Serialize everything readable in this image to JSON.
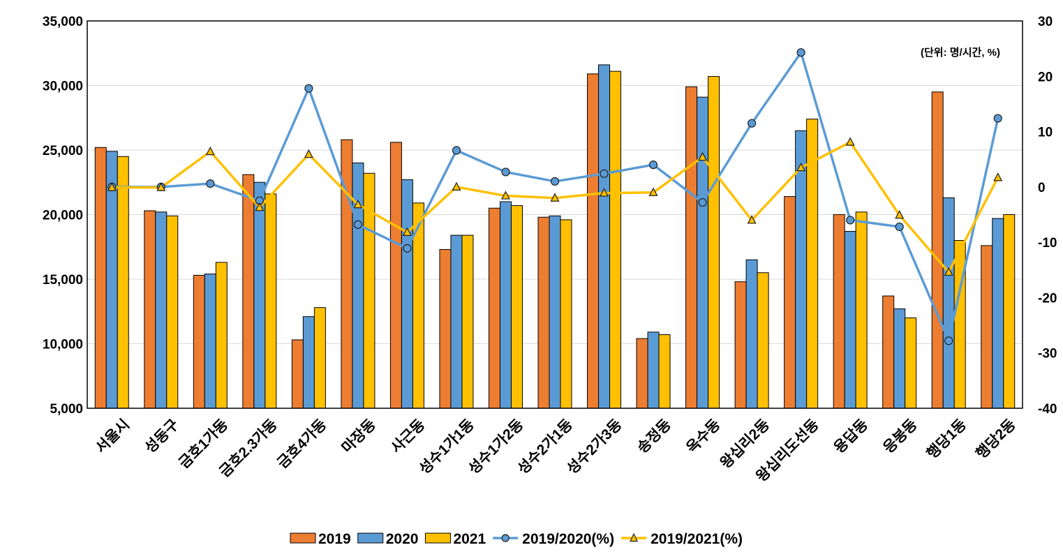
{
  "chart_data": {
    "type": "bar",
    "unit_note": "(단위: 명/시간, %)",
    "categories": [
      "서울시",
      "성동구",
      "금호1가동",
      "금호2.3가동",
      "금호4가동",
      "마장동",
      "사근동",
      "성수1가1동",
      "성수1가2동",
      "성수2가1동",
      "성수2가3동",
      "송정동",
      "옥수동",
      "왕십리2동",
      "왕십리도선동",
      "용답동",
      "응봉동",
      "행당1동",
      "행당2동"
    ],
    "series": [
      {
        "name": "2019",
        "axis": "left",
        "kind": "bar",
        "color": "#ED7D31",
        "values": [
          25200,
          20300,
          15300,
          23100,
          10300,
          25800,
          25600,
          17300,
          20500,
          19800,
          30900,
          10400,
          29900,
          14800,
          21400,
          20000,
          13700,
          29500,
          17600
        ]
      },
      {
        "name": "2020",
        "axis": "left",
        "kind": "bar",
        "color": "#5B9BD5",
        "values": [
          24900,
          20200,
          15400,
          22500,
          12100,
          24000,
          22700,
          18400,
          21000,
          19900,
          31600,
          10900,
          29100,
          16500,
          26500,
          18700,
          12700,
          21300,
          19700
        ]
      },
      {
        "name": "2021",
        "axis": "left",
        "kind": "bar",
        "color": "#FFC000",
        "values": [
          24500,
          19900,
          16300,
          21600,
          12800,
          23200,
          20900,
          18400,
          20700,
          19600,
          31100,
          10700,
          30700,
          15500,
          27400,
          20200,
          12000,
          18000,
          20000
        ]
      },
      {
        "name": "2019/2020(%)",
        "axis": "right",
        "kind": "line",
        "marker": "circle",
        "color": "#5B9BD5",
        "values": [
          0.0,
          0.0,
          0.6,
          -2.5,
          17.8,
          -6.8,
          -11.1,
          6.6,
          2.7,
          1.0,
          2.4,
          4.0,
          -2.8,
          11.5,
          24.3,
          -6.0,
          -7.2,
          -27.8,
          12.4
        ]
      },
      {
        "name": "2019/2021(%)",
        "axis": "right",
        "kind": "line",
        "marker": "triangle",
        "color": "#FFC000",
        "values": [
          -0.1,
          -0.1,
          6.4,
          -3.7,
          5.9,
          -3.2,
          -8.2,
          0.0,
          -1.6,
          -2.0,
          -1.1,
          -1.0,
          5.4,
          -6.0,
          3.5,
          8.1,
          -5.1,
          -15.4,
          1.7
        ]
      }
    ],
    "y_left": {
      "ylim": [
        5000,
        35000
      ],
      "ticks": [
        5000,
        10000,
        15000,
        20000,
        25000,
        30000,
        35000
      ],
      "tick_labels": [
        "5,000",
        "10,000",
        "15,000",
        "20,000",
        "25,000",
        "30,000",
        "35,000"
      ]
    },
    "y_right": {
      "ylim": [
        -40,
        30
      ],
      "ticks": [
        -40,
        -30,
        -20,
        -10,
        0,
        10,
        20,
        30
      ],
      "tick_labels": [
        "-40",
        "-30",
        "-20",
        "-10",
        "0",
        "10",
        "20",
        "30"
      ]
    },
    "grid": true,
    "legend": {
      "position": "bottom",
      "labels": [
        "2019",
        "2020",
        "2021",
        "2019/2020(%)",
        "2019/2021(%)"
      ]
    }
  }
}
